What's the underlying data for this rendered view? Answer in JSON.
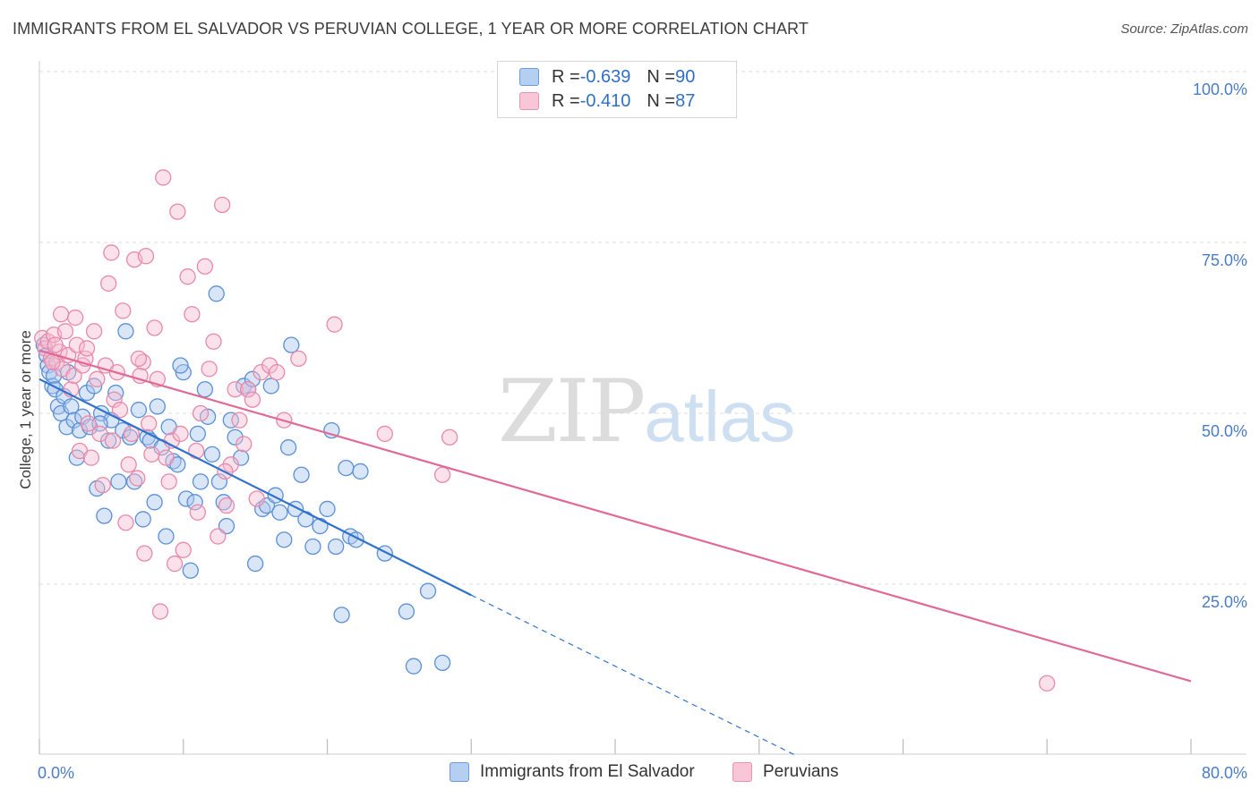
{
  "header": {
    "title": "IMMIGRANTS FROM EL SALVADOR VS PERUVIAN COLLEGE, 1 YEAR OR MORE CORRELATION CHART",
    "source": "Source: ZipAtlas.com"
  },
  "watermark": {
    "zip": "ZIP",
    "atlas": "atlas"
  },
  "legend": {
    "rows": [
      {
        "r_label": "R = ",
        "r_value": "-0.639",
        "n_label": "N = ",
        "n_value": "90"
      },
      {
        "r_label": "R = ",
        "r_value": "-0.410",
        "n_label": "N = ",
        "n_value": "87"
      }
    ]
  },
  "colors": {
    "blue_fill": "#aac8f0",
    "blue_stroke": "#5b8fd6",
    "blue_line": "#2f72cc",
    "pink_fill": "#f6bcd0",
    "pink_stroke": "#e889aa",
    "pink_line": "#e06a96",
    "grid": "#dddddd",
    "tick_text": "#4a7cc8"
  },
  "chart_data": {
    "type": "scatter",
    "title": "IMMIGRANTS FROM EL SALVADOR VS PERUVIAN COLLEGE, 1 YEAR OR MORE CORRELATION CHART",
    "xlabel": "",
    "ylabel": "College, 1 year or more",
    "xlim": [
      0,
      80
    ],
    "ylim": [
      0,
      100
    ],
    "x_tick_labels": [
      "0.0%",
      "80.0%"
    ],
    "y_ticks": [
      25,
      50,
      75,
      100
    ],
    "y_tick_labels": [
      "25.0%",
      "50.0%",
      "75.0%",
      "100.0%"
    ],
    "grid": true,
    "legend_position": "top-center",
    "series": [
      {
        "name": "Immigrants from El Salvador",
        "color": "#aac8f0",
        "r": -0.639,
        "n": 90,
        "trend": {
          "x": [
            0,
            30
          ],
          "y": [
            55.0,
            23.4
          ],
          "dashed_to": [
            52.5,
            0
          ]
        },
        "points": [
          [
            0.3,
            60.0
          ],
          [
            0.5,
            58.5
          ],
          [
            0.6,
            57.0
          ],
          [
            0.7,
            56.0
          ],
          [
            0.9,
            54.0
          ],
          [
            1.0,
            55.5
          ],
          [
            1.1,
            53.5
          ],
          [
            1.3,
            51.0
          ],
          [
            1.5,
            50.0
          ],
          [
            1.7,
            52.5
          ],
          [
            1.9,
            48.0
          ],
          [
            2.2,
            51.0
          ],
          [
            2.4,
            49.0
          ],
          [
            2.6,
            43.5
          ],
          [
            2.8,
            47.5
          ],
          [
            3.0,
            49.5
          ],
          [
            3.3,
            53.0
          ],
          [
            3.5,
            48.0
          ],
          [
            3.8,
            54.0
          ],
          [
            4.0,
            39.0
          ],
          [
            4.3,
            50.0
          ],
          [
            4.5,
            35.0
          ],
          [
            4.8,
            46.0
          ],
          [
            5.0,
            49.0
          ],
          [
            5.3,
            53.0
          ],
          [
            5.5,
            40.0
          ],
          [
            5.8,
            47.5
          ],
          [
            6.0,
            62.0
          ],
          [
            6.3,
            46.5
          ],
          [
            6.6,
            40.0
          ],
          [
            6.9,
            50.5
          ],
          [
            7.2,
            34.5
          ],
          [
            7.5,
            46.5
          ],
          [
            7.7,
            46.0
          ],
          [
            8.0,
            37.0
          ],
          [
            8.2,
            51.0
          ],
          [
            8.5,
            45.0
          ],
          [
            8.8,
            32.0
          ],
          [
            9.0,
            48.0
          ],
          [
            9.3,
            43.0
          ],
          [
            9.6,
            42.5
          ],
          [
            10.0,
            56.0
          ],
          [
            10.2,
            37.5
          ],
          [
            10.5,
            27.0
          ],
          [
            10.8,
            37.0
          ],
          [
            11.0,
            47.0
          ],
          [
            11.2,
            40.0
          ],
          [
            11.5,
            53.5
          ],
          [
            11.7,
            49.5
          ],
          [
            12.0,
            44.0
          ],
          [
            12.3,
            67.5
          ],
          [
            12.5,
            40.0
          ],
          [
            12.8,
            37.0
          ],
          [
            13.0,
            33.5
          ],
          [
            13.3,
            49.0
          ],
          [
            13.6,
            46.5
          ],
          [
            14.0,
            43.5
          ],
          [
            14.2,
            54.0
          ],
          [
            14.5,
            53.5
          ],
          [
            14.8,
            55.0
          ],
          [
            15.0,
            28.0
          ],
          [
            15.5,
            36.0
          ],
          [
            15.8,
            36.5
          ],
          [
            16.1,
            54.0
          ],
          [
            16.4,
            38.0
          ],
          [
            16.7,
            35.5
          ],
          [
            17.0,
            31.5
          ],
          [
            17.3,
            45.0
          ],
          [
            17.5,
            60.0
          ],
          [
            17.8,
            36.0
          ],
          [
            18.2,
            41.0
          ],
          [
            18.5,
            34.5
          ],
          [
            19.0,
            30.5
          ],
          [
            19.5,
            33.5
          ],
          [
            20.0,
            36.0
          ],
          [
            20.3,
            47.5
          ],
          [
            20.6,
            30.5
          ],
          [
            21.0,
            20.5
          ],
          [
            21.3,
            42.0
          ],
          [
            21.6,
            32.0
          ],
          [
            22.0,
            31.5
          ],
          [
            22.3,
            41.5
          ],
          [
            24.0,
            29.5
          ],
          [
            25.5,
            21.0
          ],
          [
            26.0,
            13.0
          ],
          [
            27.0,
            24.0
          ],
          [
            28.0,
            13.5
          ],
          [
            4.2,
            48.5
          ],
          [
            9.8,
            57.0
          ],
          [
            2.0,
            56.0
          ]
        ]
      },
      {
        "name": "Peruvians",
        "color": "#f6bcd0",
        "r": -0.41,
        "n": 87,
        "trend": {
          "x": [
            0,
            80
          ],
          "y": [
            59.2,
            10.8
          ]
        },
        "points": [
          [
            0.2,
            61.0
          ],
          [
            0.4,
            59.5
          ],
          [
            0.6,
            60.5
          ],
          [
            0.8,
            58.0
          ],
          [
            1.0,
            61.5
          ],
          [
            1.2,
            57.5
          ],
          [
            1.4,
            59.0
          ],
          [
            1.6,
            56.5
          ],
          [
            1.8,
            62.0
          ],
          [
            2.0,
            58.5
          ],
          [
            2.2,
            53.5
          ],
          [
            2.4,
            55.5
          ],
          [
            2.6,
            60.0
          ],
          [
            2.8,
            44.5
          ],
          [
            3.0,
            57.0
          ],
          [
            3.2,
            58.0
          ],
          [
            3.4,
            48.5
          ],
          [
            3.6,
            43.5
          ],
          [
            3.8,
            62.0
          ],
          [
            4.0,
            55.0
          ],
          [
            4.2,
            47.0
          ],
          [
            4.4,
            39.5
          ],
          [
            4.6,
            57.0
          ],
          [
            4.8,
            69.0
          ],
          [
            5.0,
            73.5
          ],
          [
            5.2,
            52.0
          ],
          [
            5.4,
            56.0
          ],
          [
            5.6,
            50.5
          ],
          [
            5.8,
            65.0
          ],
          [
            6.0,
            34.0
          ],
          [
            6.2,
            42.5
          ],
          [
            6.4,
            47.0
          ],
          [
            6.6,
            72.5
          ],
          [
            6.8,
            40.5
          ],
          [
            7.0,
            55.5
          ],
          [
            7.2,
            57.5
          ],
          [
            7.4,
            73.0
          ],
          [
            7.6,
            48.5
          ],
          [
            7.8,
            44.0
          ],
          [
            8.0,
            62.5
          ],
          [
            8.2,
            55.0
          ],
          [
            8.4,
            21.0
          ],
          [
            8.6,
            84.5
          ],
          [
            8.8,
            43.5
          ],
          [
            9.0,
            40.0
          ],
          [
            9.2,
            46.0
          ],
          [
            9.4,
            28.0
          ],
          [
            9.6,
            79.5
          ],
          [
            9.8,
            47.0
          ],
          [
            10.0,
            30.0
          ],
          [
            10.3,
            70.0
          ],
          [
            10.6,
            64.5
          ],
          [
            10.9,
            44.5
          ],
          [
            11.2,
            50.0
          ],
          [
            11.5,
            71.5
          ],
          [
            11.8,
            56.5
          ],
          [
            12.1,
            60.5
          ],
          [
            12.4,
            32.0
          ],
          [
            12.7,
            80.5
          ],
          [
            13.0,
            36.5
          ],
          [
            13.3,
            42.5
          ],
          [
            13.6,
            53.5
          ],
          [
            13.9,
            49.0
          ],
          [
            14.2,
            45.5
          ],
          [
            14.5,
            53.5
          ],
          [
            14.8,
            52.0
          ],
          [
            15.1,
            37.5
          ],
          [
            15.4,
            56.0
          ],
          [
            16.0,
            57.0
          ],
          [
            16.5,
            56.0
          ],
          [
            17.0,
            49.0
          ],
          [
            18.0,
            58.0
          ],
          [
            20.5,
            63.0
          ],
          [
            24.0,
            47.0
          ],
          [
            28.5,
            46.5
          ],
          [
            28.0,
            41.0
          ],
          [
            70.0,
            10.5
          ],
          [
            1.1,
            60.0
          ],
          [
            1.5,
            64.5
          ],
          [
            0.9,
            57.5
          ],
          [
            2.5,
            64.0
          ],
          [
            3.3,
            59.5
          ],
          [
            6.9,
            58.0
          ],
          [
            7.3,
            29.5
          ],
          [
            11.0,
            35.5
          ],
          [
            12.9,
            41.5
          ],
          [
            5.1,
            46.0
          ]
        ]
      }
    ]
  },
  "bottom_legend": {
    "items": [
      {
        "label": "Immigrants from El Salvador"
      },
      {
        "label": "Peruvians"
      }
    ]
  }
}
